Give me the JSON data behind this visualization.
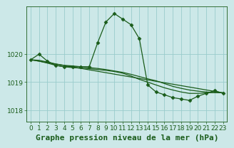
{
  "bg_color": "#cce8e8",
  "grid_color": "#99cccc",
  "line_color": "#1a5c1a",
  "xlim": [
    -0.5,
    23.5
  ],
  "ylim": [
    1017.6,
    1021.7
  ],
  "yticks": [
    1018,
    1019,
    1020
  ],
  "xticks": [
    0,
    1,
    2,
    3,
    4,
    5,
    6,
    7,
    8,
    9,
    10,
    11,
    12,
    13,
    14,
    15,
    16,
    17,
    18,
    19,
    20,
    21,
    22,
    23
  ],
  "series1_x": [
    0,
    1,
    2,
    3,
    4,
    5,
    6,
    7,
    8,
    9,
    10,
    11,
    12,
    13,
    14,
    15,
    16,
    17,
    18,
    19,
    20,
    21,
    22,
    23
  ],
  "series1_y": [
    1019.8,
    1020.0,
    1019.75,
    1019.6,
    1019.55,
    1019.55,
    1019.55,
    1019.55,
    1020.4,
    1021.15,
    1021.45,
    1021.25,
    1021.05,
    1020.55,
    1018.9,
    1018.65,
    1018.55,
    1018.45,
    1018.4,
    1018.35,
    1018.5,
    1018.6,
    1018.7,
    1018.6
  ],
  "series2_x": [
    0,
    1,
    2,
    3,
    4,
    5,
    6,
    7,
    8,
    9,
    10,
    11,
    12,
    13,
    14,
    15,
    16,
    17,
    18,
    19,
    20,
    21,
    22,
    23
  ],
  "series2_y": [
    1019.8,
    1019.78,
    1019.72,
    1019.65,
    1019.6,
    1019.58,
    1019.55,
    1019.52,
    1019.49,
    1019.45,
    1019.4,
    1019.35,
    1019.28,
    1019.2,
    1019.12,
    1019.05,
    1018.95,
    1018.85,
    1018.78,
    1018.72,
    1018.68,
    1018.65,
    1018.63,
    1018.62
  ],
  "series3_x": [
    0,
    1,
    2,
    3,
    4,
    5,
    6,
    7,
    8,
    9,
    10,
    11,
    12,
    13,
    14,
    15,
    16,
    17,
    18,
    19,
    20,
    21,
    22,
    23
  ],
  "series3_y": [
    1019.8,
    1019.75,
    1019.68,
    1019.6,
    1019.55,
    1019.52,
    1019.5,
    1019.48,
    1019.45,
    1019.42,
    1019.38,
    1019.32,
    1019.22,
    1019.1,
    1019.0,
    1018.9,
    1018.8,
    1018.72,
    1018.65,
    1018.6,
    1018.6,
    1018.62,
    1018.63,
    1018.62
  ],
  "series4_x": [
    0,
    23
  ],
  "series4_y": [
    1019.8,
    1018.62
  ],
  "xlabel": "Graphe pression niveau de la mer (hPa)",
  "xlabel_fontsize": 8,
  "tick_fontsize": 6.5,
  "marker_size": 2.5,
  "line_width": 0.9
}
